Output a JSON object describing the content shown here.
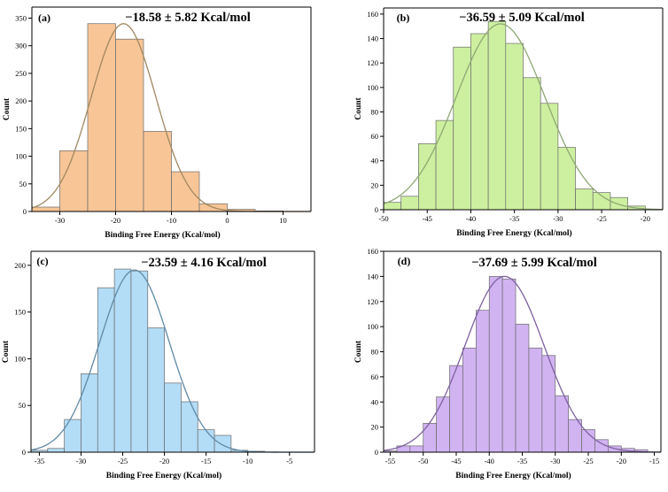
{
  "chart_data": [
    {
      "type": "bar",
      "panel_label": "(a)",
      "title": "−18.58 ± 5.82 Kcal/mol",
      "xlabel": "Binding Free Energy (Kcal/mol)",
      "ylabel": "Count",
      "xlim": [
        -35,
        15
      ],
      "ylim": [
        0,
        370
      ],
      "xticks": [
        -30,
        -20,
        -10,
        0,
        10
      ],
      "yticks": [
        0,
        50,
        100,
        150,
        200,
        250,
        300,
        350
      ],
      "bin_edges": [
        -35,
        -30,
        -25,
        -20,
        -15,
        -10,
        -5,
        0,
        5,
        10,
        15
      ],
      "values": [
        8,
        110,
        340,
        312,
        145,
        72,
        14,
        4,
        1,
        0
      ],
      "fit": {
        "mean": -18.58,
        "sd": 5.82,
        "peak": 340
      },
      "bar_color": "#f8c597",
      "curve_color": "#a08860"
    },
    {
      "type": "bar",
      "panel_label": "(b)",
      "title": "−36.59 ± 5.09 Kcal/mol",
      "xlabel": "Binding Free Energy (Kcal/mol)",
      "ylabel": "Count",
      "xlim": [
        -50,
        -18
      ],
      "ylim": [
        0,
        165
      ],
      "xticks": [
        -50,
        -45,
        -40,
        -35,
        -30,
        -25,
        -20
      ],
      "yticks": [
        0,
        20,
        40,
        60,
        80,
        100,
        120,
        140,
        160
      ],
      "bin_edges": [
        -50,
        -48,
        -46,
        -44,
        -42,
        -40,
        -38,
        -36,
        -34,
        -32,
        -30,
        -28,
        -26,
        -24,
        -22,
        -20
      ],
      "values": [
        6,
        11,
        54,
        73,
        133,
        144,
        154,
        136,
        108,
        87,
        51,
        17,
        14,
        10,
        3
      ],
      "fit": {
        "mean": -36.59,
        "sd": 5.09,
        "peak": 152
      },
      "bar_color": "#cdf0a0",
      "curve_color": "#8fa874"
    },
    {
      "type": "bar",
      "panel_label": "(c)",
      "title": "−23.59 ± 4.16 Kcal/mol",
      "xlabel": "Binding Free Energy (Kcal/mol)",
      "ylabel": "Count",
      "xlim": [
        -36,
        -2
      ],
      "ylim": [
        0,
        215
      ],
      "xticks": [
        -35,
        -30,
        -25,
        -20,
        -15,
        -10,
        -5
      ],
      "yticks": [
        0,
        50,
        100,
        150,
        200
      ],
      "bin_edges": [
        -36,
        -34,
        -32,
        -30,
        -28,
        -26,
        -24,
        -22,
        -20,
        -18,
        -16,
        -14,
        -12,
        -10,
        -8
      ],
      "values": [
        2,
        4,
        35,
        84,
        176,
        196,
        194,
        133,
        74,
        54,
        24,
        18,
        2,
        1
      ],
      "fit": {
        "mean": -23.59,
        "sd": 4.16,
        "peak": 195
      },
      "bar_color": "#b3dcf6",
      "curve_color": "#5f8aa6"
    },
    {
      "type": "bar",
      "panel_label": "(d)",
      "title": "−37.69 ± 5.99 Kcal/mol",
      "xlabel": "Binding Free Energy (Kcal/mol)",
      "ylabel": "Count",
      "xlim": [
        -56,
        -14
      ],
      "ylim": [
        0,
        160
      ],
      "xticks": [
        -55,
        -50,
        -45,
        -40,
        -35,
        -30,
        -25,
        -20,
        -15
      ],
      "yticks": [
        0,
        20,
        40,
        60,
        80,
        100,
        120,
        140,
        160
      ],
      "bin_edges": [
        -56,
        -54,
        -52,
        -50,
        -48,
        -46,
        -44,
        -42,
        -40,
        -38,
        -36,
        -34,
        -32,
        -30,
        -28,
        -26,
        -24,
        -22,
        -20,
        -18,
        -16
      ],
      "values": [
        1,
        5,
        5,
        23,
        44,
        69,
        83,
        113,
        140,
        138,
        102,
        83,
        77,
        45,
        26,
        18,
        10,
        5,
        3,
        2
      ],
      "fit": {
        "mean": -37.69,
        "sd": 5.99,
        "peak": 140
      },
      "bar_color": "#d1b3f2",
      "curve_color": "#7e62a0"
    }
  ]
}
